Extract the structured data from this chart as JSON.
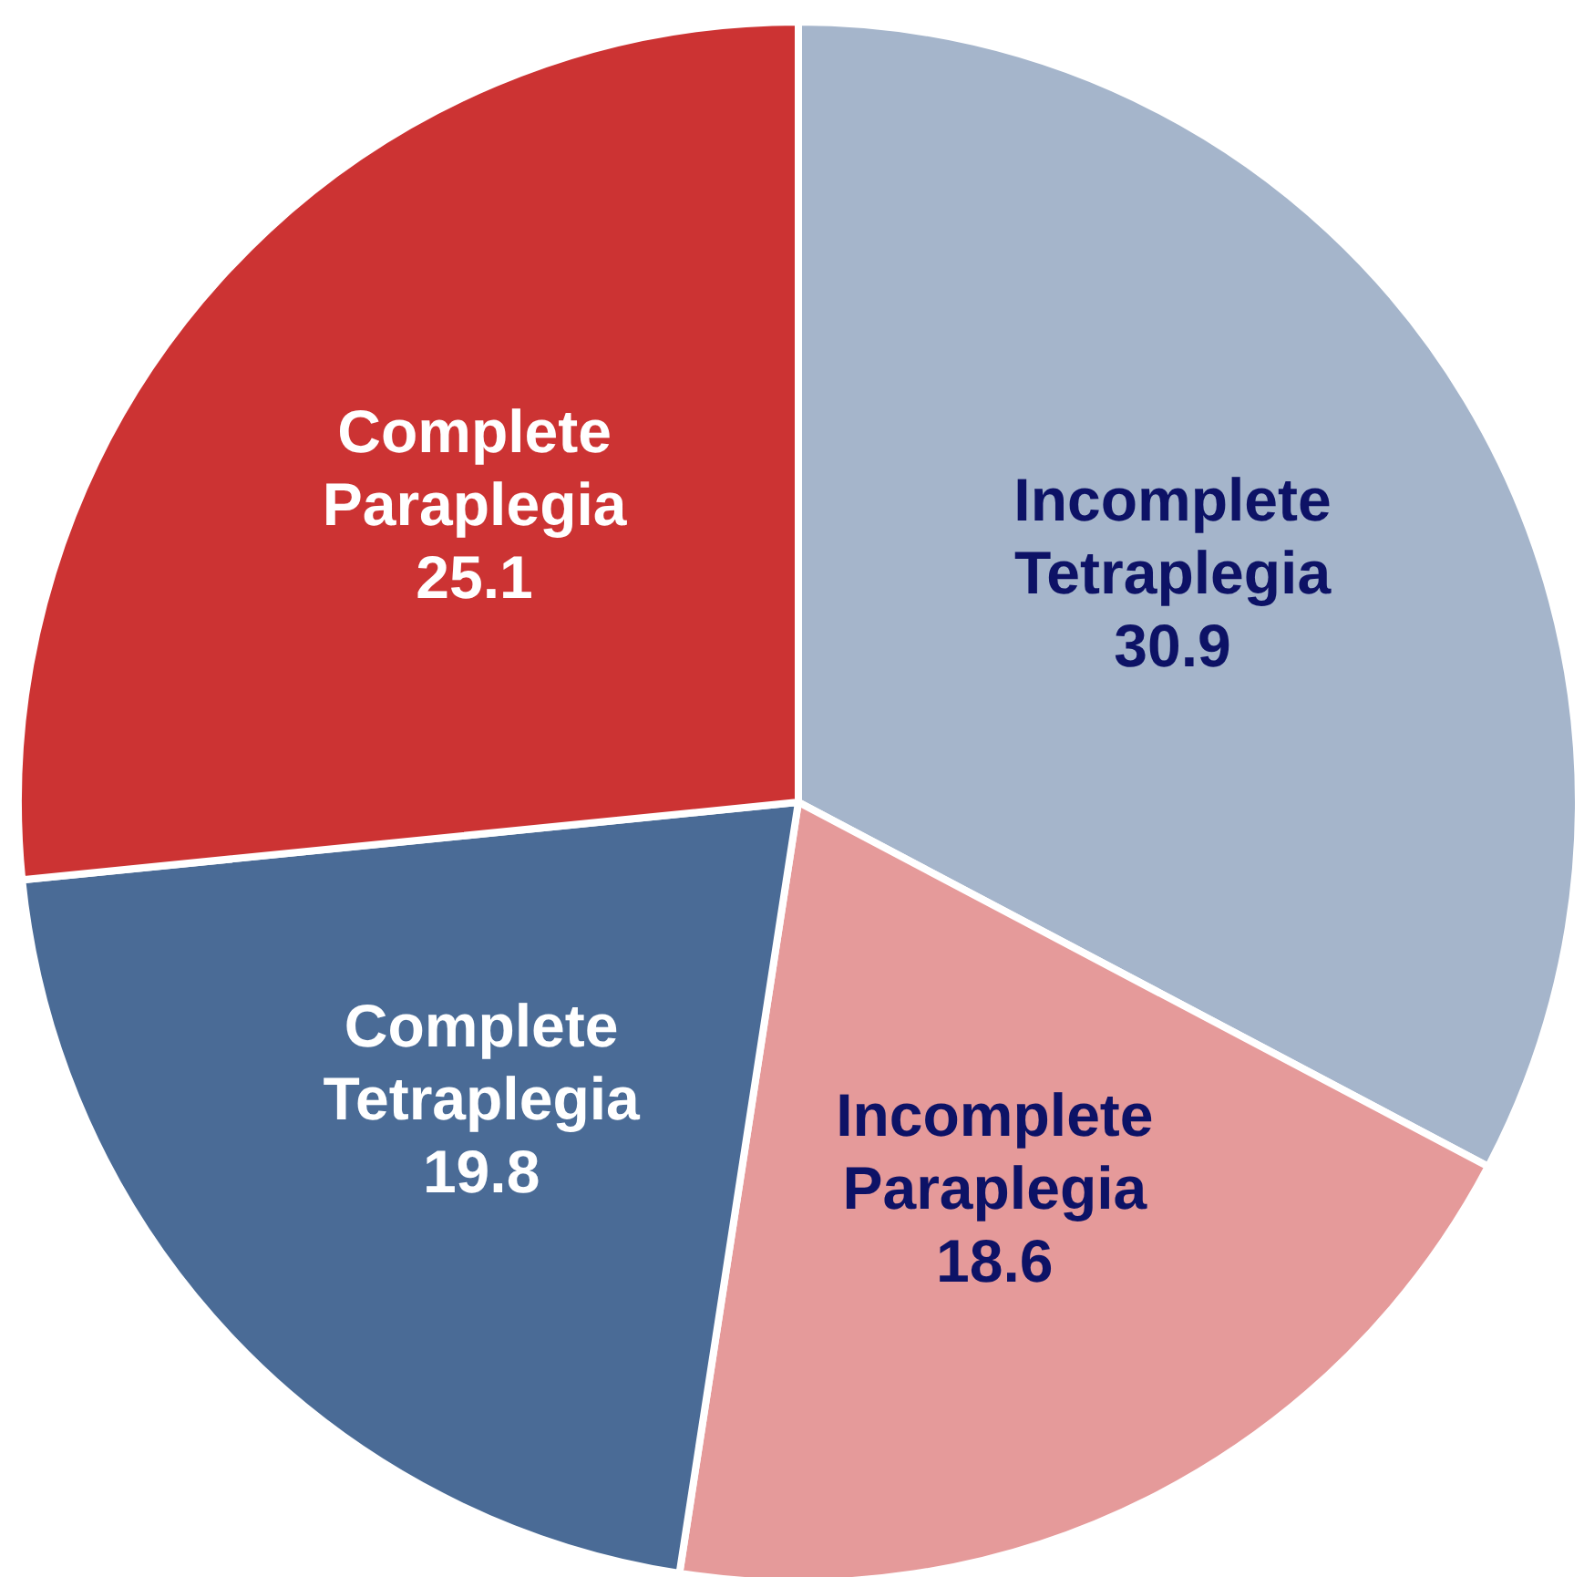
{
  "chart_data": {
    "type": "pie",
    "categories": [
      "Incomplete Tetraplegia",
      "Incomplete Paraplegia",
      "Complete Tetraplegia",
      "Complete Paraplegia"
    ],
    "values": [
      30.9,
      18.6,
      19.8,
      25.1
    ],
    "colors": [
      "#a5b5cb",
      "#e59a9a",
      "#4a6b96",
      "#cc3333"
    ],
    "data_labels": true,
    "legend": false
  }
}
